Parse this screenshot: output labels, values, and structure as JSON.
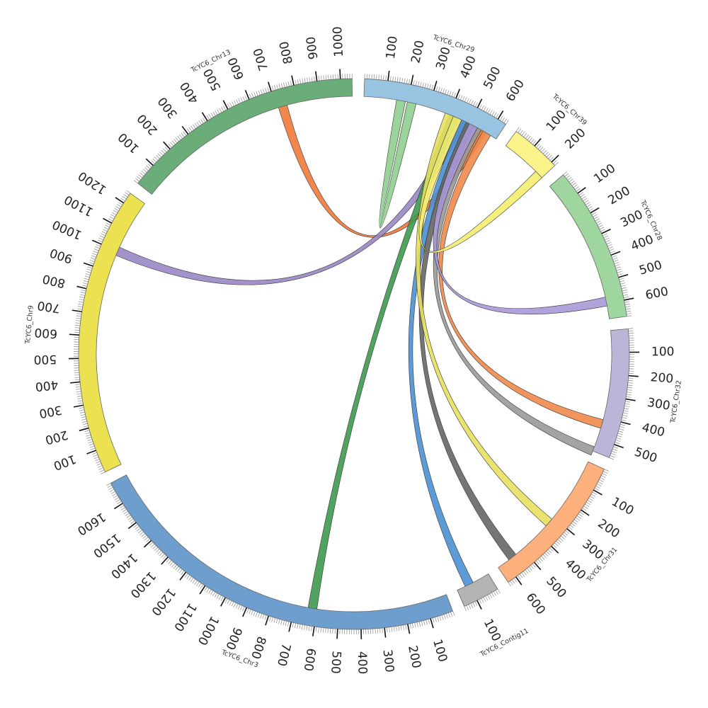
{
  "diagram": {
    "type": "circos",
    "tick_step": 100,
    "minor_tick_step": 10,
    "chromosomes": [
      {
        "name": "TcYC6_Chr29",
        "length": 640,
        "color": "#98c4e2",
        "ticks": [
          "100",
          "200",
          "300",
          "400",
          "500",
          "600"
        ]
      },
      {
        "name": "TcYC6_Chr39",
        "length": 220,
        "color": "#fbf48a",
        "ticks": [
          "100",
          "200"
        ]
      },
      {
        "name": "TcYC6_Chr28",
        "length": 670,
        "color": "#9fd59e",
        "ticks": [
          "100",
          "200",
          "300",
          "400",
          "500",
          "600"
        ]
      },
      {
        "name": "TcYC6_Chr32",
        "length": 560,
        "color": "#bbb6d7",
        "ticks": [
          "100",
          "200",
          "300",
          "400",
          "500"
        ]
      },
      {
        "name": "TcYC6_Chr31",
        "length": 640,
        "color": "#fcb07b",
        "ticks": [
          "100",
          "200",
          "300",
          "400",
          "500",
          "600"
        ]
      },
      {
        "name": "TcYC6_Contig11",
        "length": 160,
        "color": "#b4b4b4",
        "ticks": [
          "100"
        ]
      },
      {
        "name": "TcYC6_Chr3",
        "length": 1700,
        "color": "#6d9ece",
        "ticks": [
          "100",
          "200",
          "300",
          "400",
          "500",
          "600",
          "700",
          "800",
          "900",
          "1000",
          "1100",
          "1200",
          "1300",
          "1400",
          "1500",
          "1600"
        ]
      },
      {
        "name": "TcYC6_Chr9",
        "length": 1250,
        "color": "#ebe151",
        "ticks": [
          "100",
          "200",
          "300",
          "400",
          "500",
          "600",
          "700",
          "800",
          "900",
          "1000",
          "1100",
          "1200"
        ]
      },
      {
        "name": "TcYC6_Chr13",
        "length": 1050,
        "color": "#6aad78",
        "ticks": [
          "100",
          "200",
          "300",
          "400",
          "500",
          "600",
          "700",
          "800",
          "900",
          "1000"
        ]
      }
    ],
    "links": [
      {
        "from": "TcYC6_Chr29",
        "from_pos": 170,
        "to": "TcYC6_Chr29",
        "to_pos": 220,
        "color": "#8fcf8f"
      },
      {
        "from": "TcYC6_Chr29",
        "from_pos": 565,
        "to": "TcYC6_Chr13",
        "to_pos": 730,
        "color": "#f07a3a"
      },
      {
        "from": "TcYC6_Chr29",
        "from_pos": 460,
        "to": "TcYC6_Chr9",
        "to_pos": 1000,
        "color": "#9a86c4"
      },
      {
        "from": "TcYC6_Chr29",
        "from_pos": 420,
        "to": "TcYC6_Chr3",
        "to_pos": 620,
        "color": "#3d9a4e"
      },
      {
        "from": "TcYC6_Chr29",
        "from_pos": 480,
        "to": "TcYC6_Contig11",
        "to_pos": 100,
        "color": "#4a90d0"
      },
      {
        "from": "TcYC6_Chr29",
        "from_pos": 590,
        "to": "TcYC6_Chr32",
        "to_pos": 430,
        "color": "#f08a4a"
      },
      {
        "from": "TcYC6_Chr29",
        "from_pos": 540,
        "to": "TcYC6_Chr32",
        "to_pos": 560,
        "color": "#999999"
      },
      {
        "from": "TcYC6_Chr29",
        "from_pos": 505,
        "to": "TcYC6_Chr31",
        "to_pos": 560,
        "color": "#666666"
      },
      {
        "from": "TcYC6_Chr29",
        "from_pos": 400,
        "to": "TcYC6_Chr31",
        "to_pos": 330,
        "color": "#e8e060"
      },
      {
        "from": "TcYC6_Chr29",
        "from_pos": 520,
        "to": "TcYC6_Chr28",
        "to_pos": 590,
        "color": "#a898d8"
      },
      {
        "from": "TcYC6_Chr29",
        "from_pos": 440,
        "to": "TcYC6_Chr39",
        "to_pos": 200,
        "color": "#f4ee70"
      }
    ]
  }
}
